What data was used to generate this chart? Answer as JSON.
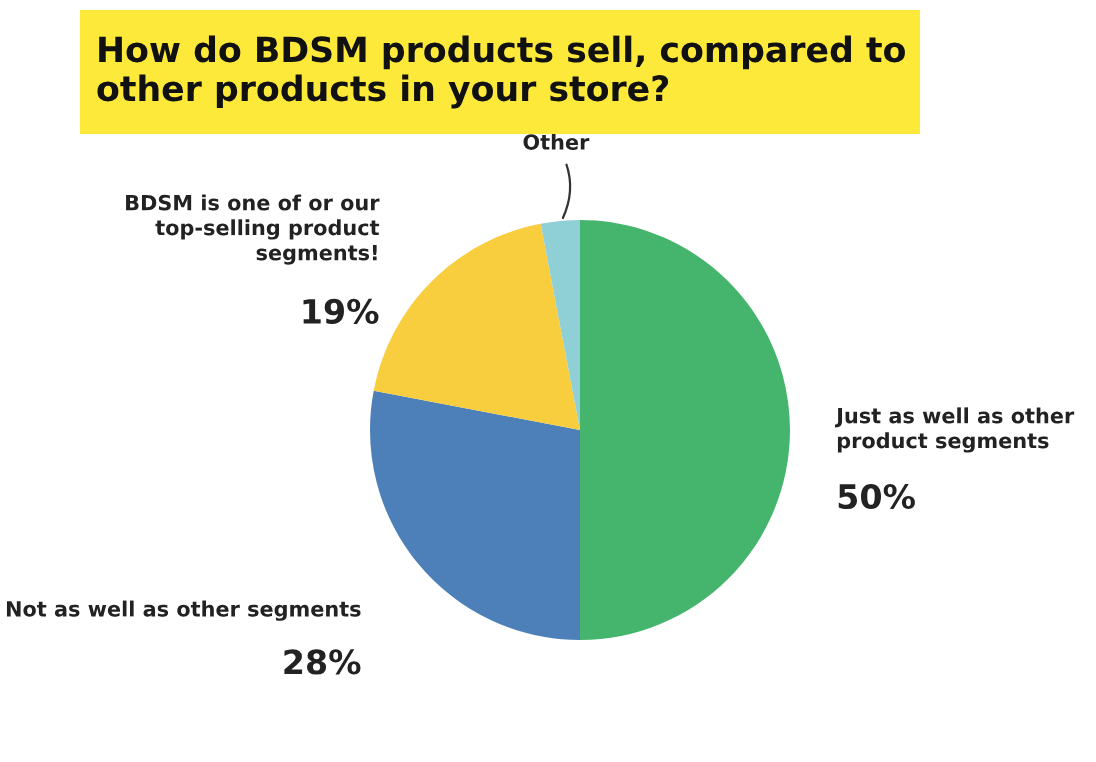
{
  "chart_data": {
    "type": "pie",
    "title": "How do BDSM products sell, compared to\nother products in your store?",
    "categories": [
      "Just as well as other\nproduct segments",
      "Not as well as other segments",
      "BDSM is one of or our\ntop-selling product\nsegments!",
      "Other"
    ],
    "values": [
      50,
      28,
      19,
      3
    ],
    "colors": [
      "#45b46c",
      "#4d80b8",
      "#f8cd3e",
      "#8fd0d6"
    ],
    "value_labels": [
      "50%",
      "28%",
      "19%",
      null
    ],
    "legend": false
  }
}
